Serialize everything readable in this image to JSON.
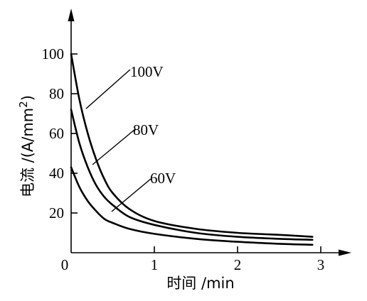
{
  "chart_data": {
    "type": "line",
    "title": "",
    "xlabel": "时间 /min",
    "ylabel_main": "电流 /(A/mm",
    "ylabel_sup": "2",
    "ylabel_end": ")",
    "xlim": [
      0,
      3.3
    ],
    "ylim": [
      0,
      120
    ],
    "xticks": [
      {
        "value": 0,
        "label": "0"
      },
      {
        "value": 1,
        "label": "1"
      },
      {
        "value": 2,
        "label": "2"
      },
      {
        "value": 3,
        "label": "3"
      }
    ],
    "yticks": [
      {
        "value": 20,
        "label": "20"
      },
      {
        "value": 40,
        "label": "40"
      },
      {
        "value": 60,
        "label": "60"
      },
      {
        "value": 80,
        "label": "80"
      },
      {
        "value": 100,
        "label": "100"
      }
    ],
    "grid": false,
    "legend": "none",
    "series": [
      {
        "name": "100V",
        "x": [
          0,
          0.1,
          0.2,
          0.3,
          0.4,
          0.5,
          0.7,
          1.0,
          1.5,
          2.0,
          2.5,
          2.9
        ],
        "y": [
          100,
          77,
          60,
          47,
          37,
          30,
          22,
          16,
          12,
          10,
          9,
          8
        ]
      },
      {
        "name": "80V",
        "x": [
          0,
          0.1,
          0.2,
          0.3,
          0.4,
          0.5,
          0.7,
          1.0,
          1.5,
          2.0,
          2.5,
          2.9
        ],
        "y": [
          72,
          55,
          43,
          34,
          28,
          24,
          18,
          14,
          10,
          8,
          7,
          6.5
        ]
      },
      {
        "name": "60V",
        "x": [
          0,
          0.1,
          0.2,
          0.3,
          0.4,
          0.5,
          0.7,
          1.0,
          1.5,
          2.0,
          2.5,
          2.9
        ],
        "y": [
          43,
          33,
          26,
          21,
          17,
          15,
          12,
          9.5,
          7,
          5.5,
          4.5,
          4
        ]
      }
    ],
    "annotations": [
      {
        "text": "100V",
        "series": "100V"
      },
      {
        "text": "80V",
        "series": "80V"
      },
      {
        "text": "60V",
        "series": "60V"
      }
    ]
  }
}
